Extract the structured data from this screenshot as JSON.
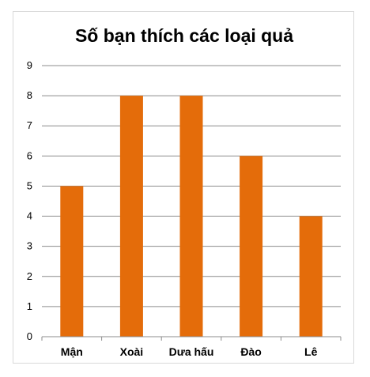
{
  "chart_data": {
    "type": "bar",
    "title": "Số bạn thích các loại quả",
    "xlabel": "",
    "ylabel": "",
    "categories": [
      "Mận",
      "Xoài",
      "Dưa hấu",
      "Đào",
      "Lê"
    ],
    "values": [
      5,
      8,
      8,
      6,
      4
    ],
    "ylim": [
      0,
      9
    ],
    "yticks": [
      "0",
      "1",
      "2",
      "3",
      "4",
      "5",
      "6",
      "7",
      "8",
      "9"
    ],
    "grid": true,
    "legend": "none",
    "colors": {
      "bar": "#e46c0a",
      "gridline": "#8c8c8c",
      "axis": "#8c8c8c"
    }
  }
}
